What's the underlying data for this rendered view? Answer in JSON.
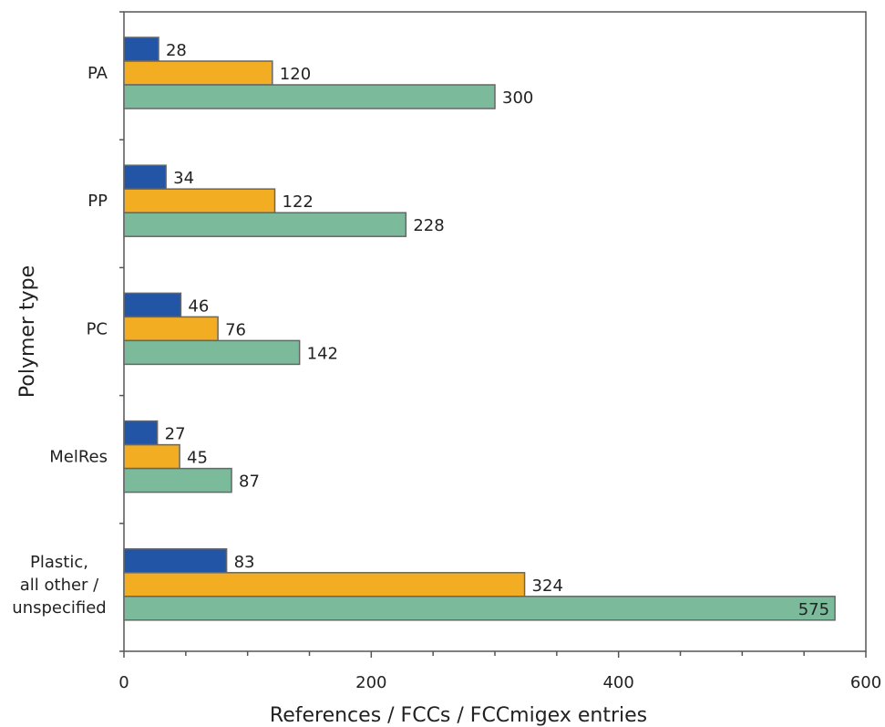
{
  "chart_data": {
    "type": "bar",
    "orientation": "horizontal",
    "xlabel": "References / FCCs / FCCmigex entries",
    "ylabel": "Polymer type",
    "xlim": [
      0,
      600
    ],
    "x_ticks": [
      "0",
      "200",
      "400",
      "600"
    ],
    "categories": [
      [
        "PA"
      ],
      [
        "PP"
      ],
      [
        "PC"
      ],
      [
        "MelRes"
      ],
      [
        "Plastic,",
        "all other /",
        "unspecified"
      ]
    ],
    "series": [
      {
        "color": "#2355a6",
        "values": [
          28,
          34,
          46,
          27,
          83
        ]
      },
      {
        "color": "#f2ad22",
        "values": [
          120,
          122,
          76,
          45,
          324
        ]
      },
      {
        "color": "#7bbb9c",
        "values": [
          300,
          228,
          142,
          87,
          575
        ]
      }
    ],
    "grid": false,
    "legend": "none"
  }
}
